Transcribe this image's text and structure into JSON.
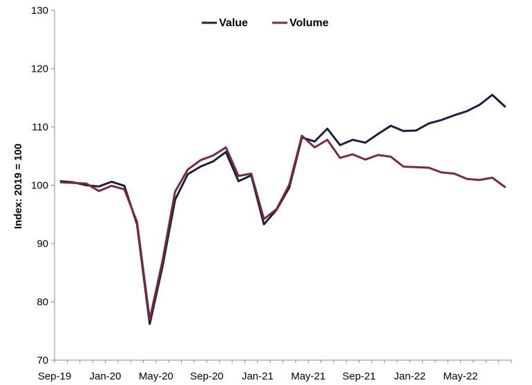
{
  "chart_data": {
    "type": "line",
    "title": "",
    "xlabel": "",
    "ylabel": "Index: 2019 = 100",
    "ylim": [
      70,
      130
    ],
    "yticks": [
      70,
      80,
      90,
      100,
      110,
      120,
      130
    ],
    "grid": false,
    "legend_position": "top-center",
    "x_tick_labels": [
      "Sep-19",
      "Jan-20",
      "May-20",
      "Sep-20",
      "Jan-21",
      "May-21",
      "Sep-21",
      "Jan-22",
      "May-22"
    ],
    "x": [
      "Sep-19",
      "Oct-19",
      "Nov-19",
      "Dec-19",
      "Jan-20",
      "Feb-20",
      "Mar-20",
      "Apr-20",
      "May-20",
      "Jun-20",
      "Jul-20",
      "Aug-20",
      "Sep-20",
      "Oct-20",
      "Nov-20",
      "Dec-20",
      "Jan-21",
      "Feb-21",
      "Mar-21",
      "Apr-21",
      "May-21",
      "Jun-21",
      "Jul-21",
      "Aug-21",
      "Sep-21",
      "Oct-21",
      "Nov-21",
      "Dec-21",
      "Jan-22",
      "Feb-22",
      "Mar-22",
      "Apr-22",
      "May-22",
      "Jun-22",
      "Jul-22",
      "Aug-22"
    ],
    "series": [
      {
        "name": "Value",
        "color": "#14213d",
        "values": [
          100.7,
          100.5,
          100.0,
          99.8,
          100.6,
          99.9,
          93.3,
          76.2,
          86.0,
          97.5,
          101.9,
          103.2,
          104.1,
          105.7,
          100.7,
          101.7,
          93.3,
          95.8,
          99.6,
          108.2,
          107.5,
          109.7,
          106.9,
          107.8,
          107.3,
          108.8,
          110.2,
          109.3,
          109.4,
          110.6,
          111.2,
          112.0,
          112.7,
          113.8,
          115.5,
          113.5
        ]
      },
      {
        "name": "Volume",
        "color": "#7a2840",
        "values": [
          100.5,
          100.4,
          100.3,
          99.0,
          99.9,
          99.3,
          93.7,
          77.0,
          87.0,
          98.9,
          102.7,
          104.3,
          105.1,
          106.5,
          101.6,
          102.0,
          94.2,
          95.9,
          100.1,
          108.5,
          106.5,
          107.8,
          104.7,
          105.3,
          104.4,
          105.2,
          104.9,
          103.2,
          103.1,
          103.0,
          102.2,
          102.0,
          101.1,
          100.9,
          101.3,
          99.7
        ]
      }
    ]
  }
}
